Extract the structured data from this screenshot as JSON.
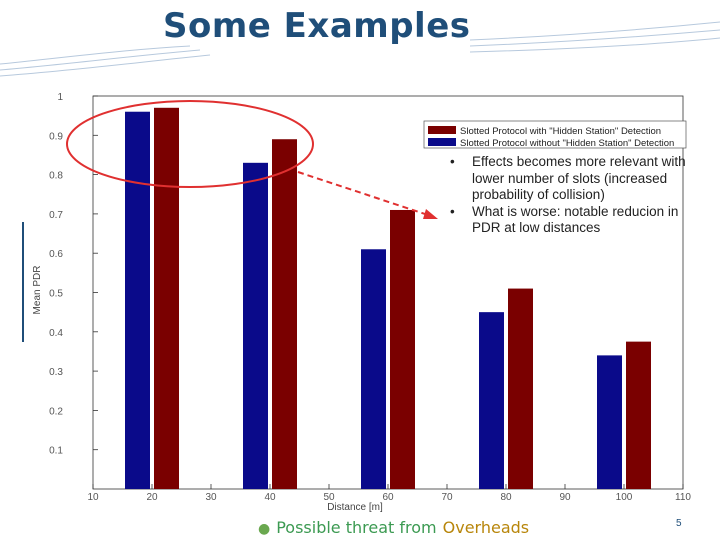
{
  "slide": {
    "title": "Some Examples",
    "number": "5",
    "footer": {
      "part1": "Possible threat from",
      "part2": "Overheads"
    }
  },
  "annotations": [
    {
      "bullet": "•",
      "text": "Effects becomes more relevant with lower number of slots (increased probability of collision)"
    },
    {
      "bullet": "•",
      "text": "What is worse: notable reducion in PDR at low distances"
    }
  ],
  "colors": {
    "title": "#1f4e79",
    "series_blue": "#0a0a8a",
    "series_red": "#7a0000",
    "highlight": "#e03030"
  },
  "chart_data": {
    "type": "bar",
    "xlabel": "Distance [m]",
    "ylabel": "Mean PDR",
    "x_ticks": [
      "10",
      "20",
      "30",
      "40",
      "50",
      "60",
      "70",
      "80",
      "90",
      "100",
      "110"
    ],
    "y_ticks": [
      "0.1",
      "0.2",
      "0.3",
      "0.4",
      "0.5",
      "0.6",
      "0.7",
      "0.8",
      "0.9",
      "1"
    ],
    "xlim": [
      10,
      110
    ],
    "ylim": [
      0,
      1
    ],
    "categories": [
      20,
      40,
      60,
      80,
      100
    ],
    "series": [
      {
        "name": "Slotted Protocol without \"Hidden Station\" Detection",
        "color": "#0a0a8a",
        "values": [
          0.96,
          0.83,
          0.61,
          0.45,
          0.34
        ]
      },
      {
        "name": "Slotted Protocol with \"Hidden Station\" Detection",
        "color": "#7a0000",
        "values": [
          0.97,
          0.89,
          0.71,
          0.51,
          0.375
        ]
      }
    ],
    "legend_position": "top-right",
    "grid": false
  }
}
